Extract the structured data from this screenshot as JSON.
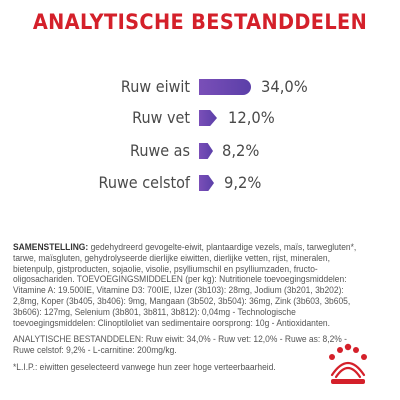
{
  "title": "ANALYTISCHE BESTANDDELEN",
  "nutrients": [
    {
      "label": "Ruw eiwit",
      "value": "34,0%",
      "level": 34.0
    },
    {
      "label": "Ruw vet",
      "value": "12,0%",
      "level": 12.0
    },
    {
      "label": "Ruwe as",
      "value": "8,2%",
      "level": 8.2
    },
    {
      "label": "Ruwe celstof",
      "value": "9,2%",
      "level": 9.2
    }
  ],
  "composition": {
    "heading": "SAMENSTELLING:",
    "text": "gedehydreerd gevogelte-eiwit, plantaardige vezels, maïs, tarwegluten*, tarwe, maïsgluten, gehydrolyseerde dierlijke eiwitten, dierlijke vetten, rijst, mineralen, bietenpulp, gistproducten, sojaolie, visolie, psylliumschil en psylliumzaden, fructo-oligosachariden. TOEVOEGINGSMIDDELEN (per kg): Nutritionele toevoegingsmiddelen: Vitamine A: 19.500IE, Vitamine D3: 700IE, IJzer (3b103): 28mg, Jodium (3b201, 3b202): 2,8mg, Koper (3b405, 3b406): 9mg, Mangaan (3b502, 3b504): 36mg, Zink (3b603, 3b605, 3b606): 127mg, Selenium (3b801, 3b811, 3b812): 0,04mg - Technologische toevoegingsmiddelen: Clinoptiloliet van sedimentaire oorsprong: 10g - Antioxidanten.",
    "analysis": "ANALYTISCHE BESTANDDELEN: Ruw eiwit: 34,0% - Ruw vet: 12,0% - Ruwe as: 8,2% - Ruwe celstof: 9,2% - L-carnitine: 200mg/kg.",
    "footnote": "*L.I.P.: eiwitten geselecteerd vanwege hun zeer hoge verteerbaarheid."
  },
  "colors": {
    "title": "#d4202a",
    "bar": "#5b3fa8",
    "brand": "#d4202a"
  },
  "logo_icon": "royal-canin-crown-logo"
}
